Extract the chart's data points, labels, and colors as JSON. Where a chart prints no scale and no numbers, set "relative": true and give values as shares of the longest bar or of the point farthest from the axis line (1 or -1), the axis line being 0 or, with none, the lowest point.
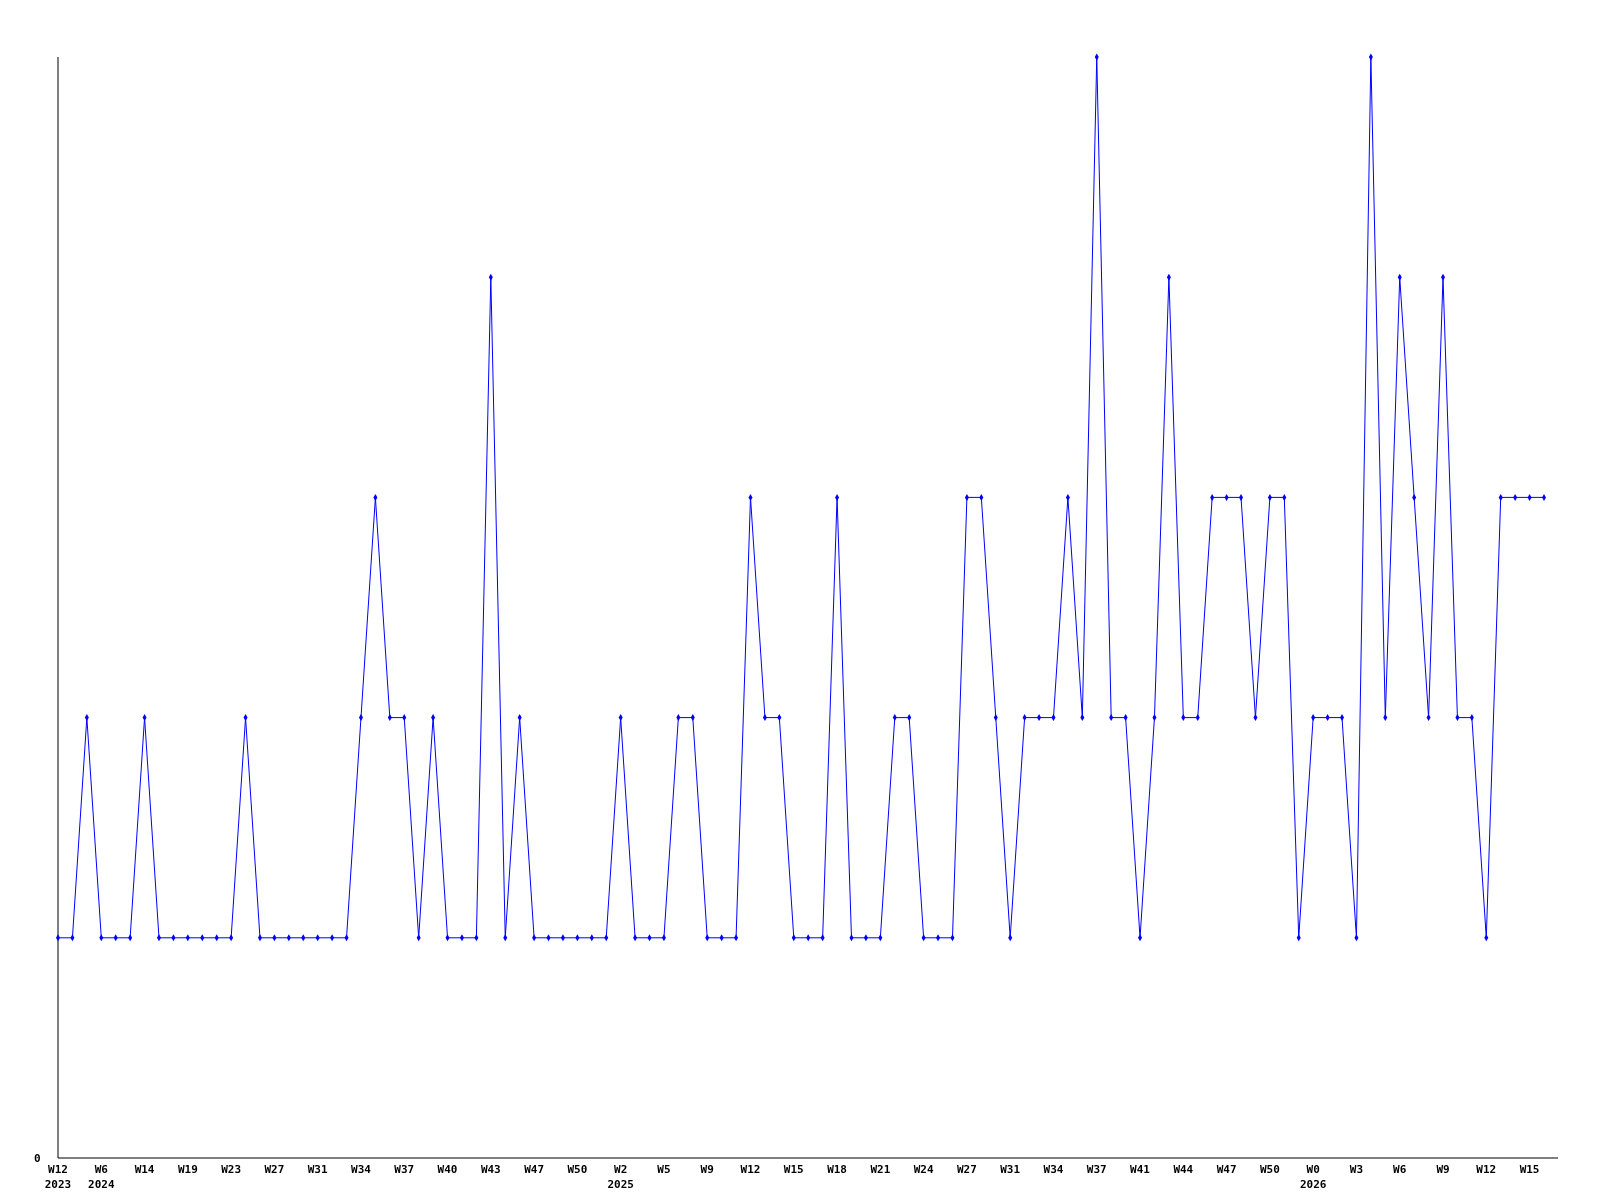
{
  "chart_data": {
    "type": "line",
    "relative": true,
    "marker": "diamond",
    "line_style": "solid",
    "annotations": [
      "0"
    ],
    "categories": [
      "W12\n2023",
      null,
      null,
      "W6\n2024",
      null,
      null,
      "W14",
      null,
      null,
      "W19",
      null,
      null,
      "W23",
      null,
      null,
      "W27",
      null,
      null,
      "W31",
      null,
      null,
      "W34",
      null,
      null,
      "W37",
      null,
      null,
      "W40",
      null,
      null,
      "W43",
      null,
      null,
      "W47",
      null,
      null,
      "W50",
      null,
      null,
      "W2\n2025",
      null,
      null,
      "W5",
      null,
      null,
      "W9",
      null,
      null,
      "W12",
      null,
      null,
      "W15",
      null,
      null,
      "W18",
      null,
      null,
      "W21",
      null,
      null,
      "W24",
      null,
      null,
      "W27",
      null,
      null,
      "W31",
      null,
      null,
      "W34",
      null,
      null,
      "W37",
      null,
      null,
      "W41",
      null,
      null,
      "W44",
      null,
      null,
      "W47",
      null,
      null,
      "W50",
      null,
      null,
      "W0\n2026",
      null,
      null,
      "W3",
      null,
      null,
      "W6",
      null,
      null,
      "W9",
      null,
      null,
      "W12",
      null,
      null,
      "W15",
      null
    ],
    "series": [
      {
        "color": "#0000ff",
        "values": [
          0.2,
          0.2,
          0.4,
          0.2,
          0.2,
          0.2,
          0.4,
          0.2,
          0.2,
          0.2,
          0.2,
          0.2,
          0.2,
          0.4,
          0.2,
          0.2,
          0.2,
          0.2,
          0.2,
          0.2,
          0.2,
          0.4,
          0.6,
          0.4,
          0.4,
          0.2,
          0.4,
          0.2,
          0.2,
          0.2,
          0.8,
          0.2,
          0.4,
          0.2,
          0.2,
          0.2,
          0.2,
          0.2,
          0.2,
          0.4,
          0.2,
          0.2,
          0.2,
          0.4,
          0.4,
          0.2,
          0.2,
          0.2,
          0.6,
          0.4,
          0.4,
          0.2,
          0.2,
          0.2,
          0.6,
          0.2,
          0.2,
          0.2,
          0.4,
          0.4,
          0.2,
          0.2,
          0.2,
          0.6,
          0.6,
          0.4,
          0.2,
          0.4,
          0.4,
          0.4,
          0.6,
          0.4,
          1,
          0.4,
          0.4,
          0.2,
          0.4,
          0.8,
          0.4,
          0.4,
          0.6,
          0.6,
          0.6,
          0.4,
          0.6,
          0.6,
          0.2,
          0.4,
          0.4,
          0.4,
          0.2,
          1,
          0.4,
          0.8,
          0.6,
          0.4,
          0.8,
          0.4,
          0.4,
          0.2,
          0.6,
          0.6,
          0.6,
          0.6
        ]
      }
    ]
  }
}
